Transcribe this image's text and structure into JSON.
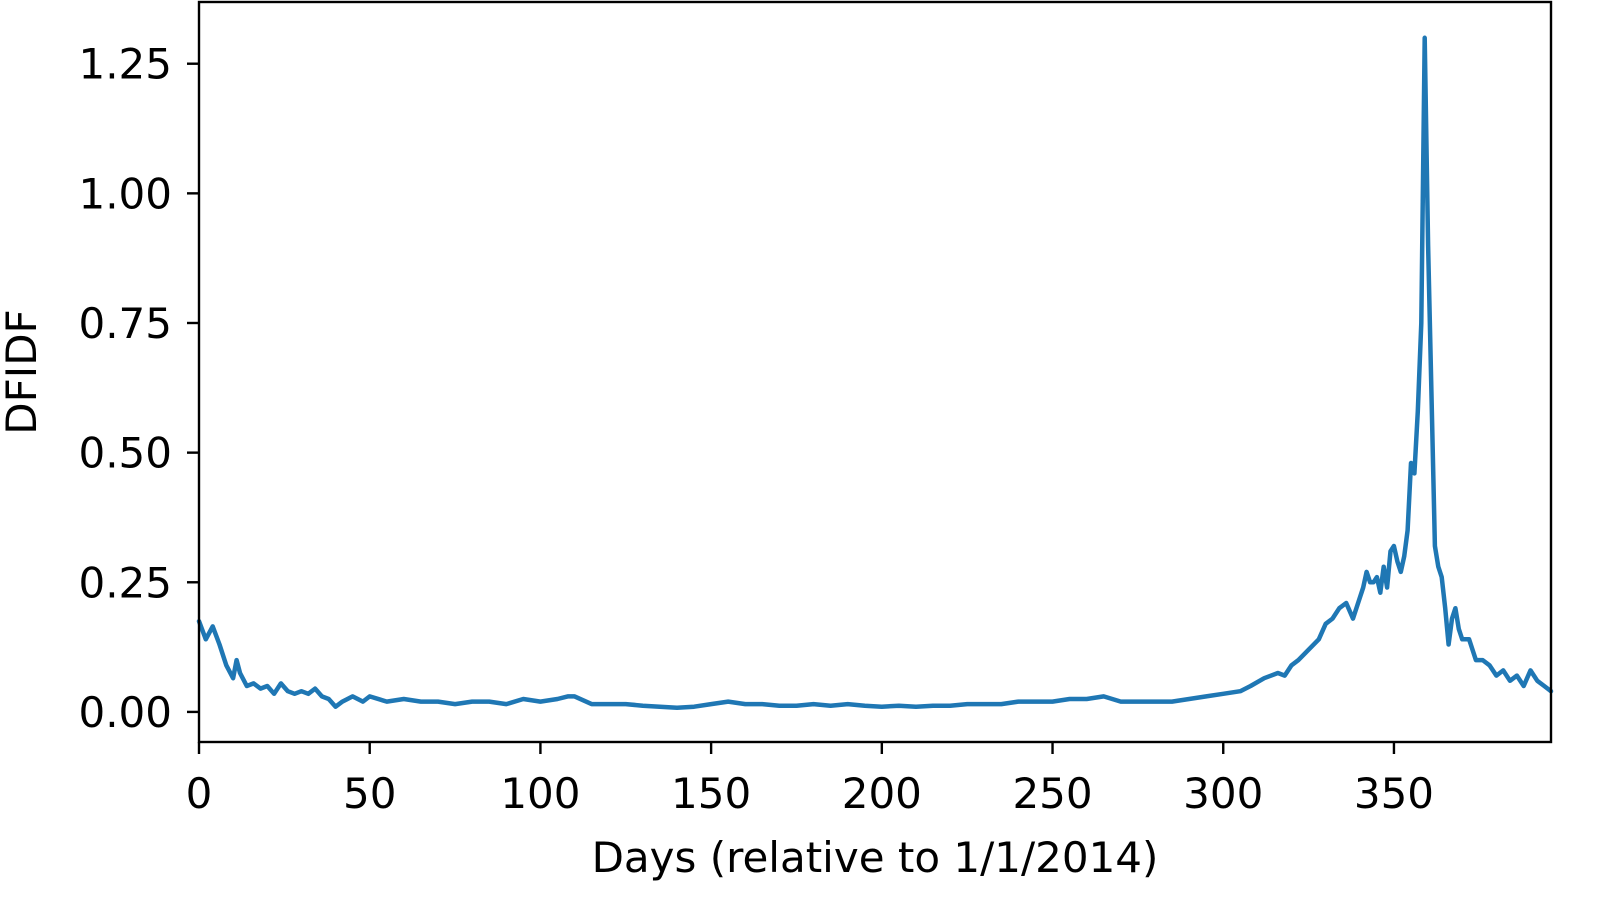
{
  "chart_data": {
    "type": "line",
    "title": "",
    "xlabel": "Days (relative to 1/1/2014)",
    "ylabel": "DFIDF",
    "xlim": [
      0,
      396
    ],
    "ylim": [
      -0.058,
      1.369
    ],
    "x_ticks": [
      0,
      50,
      100,
      150,
      200,
      250,
      300,
      350
    ],
    "x_tick_labels": [
      "0",
      "50",
      "100",
      "150",
      "200",
      "250",
      "300",
      "350"
    ],
    "y_ticks": [
      0.0,
      0.25,
      0.5,
      0.75,
      1.0,
      1.25
    ],
    "y_tick_labels": [
      "0.00",
      "0.25",
      "0.50",
      "0.75",
      "1.00",
      "1.25"
    ],
    "grid": false,
    "legend": "none",
    "line_color": "#1f77b4",
    "series": [
      {
        "x": [
          0,
          2,
          4,
          6,
          8,
          10,
          11,
          12,
          14,
          16,
          18,
          20,
          22,
          24,
          26,
          28,
          30,
          32,
          34,
          36,
          38,
          40,
          42,
          45,
          48,
          50,
          55,
          60,
          65,
          70,
          75,
          80,
          85,
          90,
          95,
          100,
          105,
          108,
          110,
          115,
          120,
          125,
          130,
          135,
          140,
          145,
          150,
          155,
          160,
          165,
          170,
          175,
          180,
          185,
          190,
          195,
          200,
          205,
          210,
          215,
          220,
          225,
          230,
          235,
          240,
          245,
          250,
          255,
          260,
          265,
          270,
          275,
          280,
          285,
          290,
          295,
          300,
          305,
          308,
          312,
          316,
          318,
          320,
          322,
          325,
          328,
          330,
          332,
          334,
          336,
          338,
          340,
          341,
          342,
          343,
          344,
          345,
          346,
          347,
          348,
          349,
          350,
          351,
          352,
          353,
          354,
          355,
          356,
          357,
          358,
          359,
          360,
          362,
          363,
          364,
          365,
          366,
          367,
          368,
          369,
          370,
          372,
          374,
          376,
          378,
          380,
          382,
          384,
          386,
          388,
          390,
          392,
          394,
          396
        ],
        "y": [
          0.175,
          0.14,
          0.165,
          0.13,
          0.09,
          0.065,
          0.1,
          0.075,
          0.05,
          0.055,
          0.045,
          0.05,
          0.035,
          0.055,
          0.04,
          0.035,
          0.04,
          0.035,
          0.045,
          0.03,
          0.025,
          0.01,
          0.02,
          0.03,
          0.02,
          0.03,
          0.02,
          0.025,
          0.02,
          0.02,
          0.015,
          0.02,
          0.02,
          0.015,
          0.025,
          0.02,
          0.025,
          0.03,
          0.03,
          0.015,
          0.015,
          0.015,
          0.012,
          0.01,
          0.008,
          0.01,
          0.015,
          0.02,
          0.015,
          0.015,
          0.012,
          0.012,
          0.015,
          0.012,
          0.015,
          0.012,
          0.01,
          0.012,
          0.01,
          0.012,
          0.012,
          0.015,
          0.015,
          0.015,
          0.02,
          0.02,
          0.02,
          0.025,
          0.025,
          0.03,
          0.02,
          0.02,
          0.02,
          0.02,
          0.025,
          0.03,
          0.035,
          0.04,
          0.05,
          0.065,
          0.075,
          0.07,
          0.09,
          0.1,
          0.12,
          0.14,
          0.17,
          0.18,
          0.2,
          0.21,
          0.18,
          0.22,
          0.24,
          0.27,
          0.25,
          0.25,
          0.26,
          0.23,
          0.28,
          0.24,
          0.31,
          0.32,
          0.29,
          0.27,
          0.3,
          0.35,
          0.48,
          0.46,
          0.58,
          0.75,
          1.3,
          0.9,
          0.32,
          0.28,
          0.26,
          0.2,
          0.13,
          0.18,
          0.2,
          0.16,
          0.14,
          0.14,
          0.1,
          0.1,
          0.09,
          0.07,
          0.08,
          0.06,
          0.07,
          0.05,
          0.08,
          0.06,
          0.05,
          0.04
        ]
      }
    ]
  }
}
